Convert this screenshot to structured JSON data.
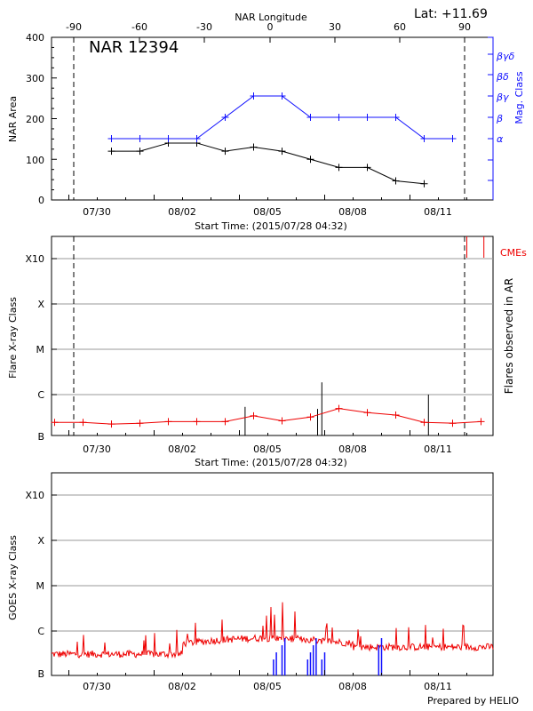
{
  "header": {
    "latitude_label": "Lat: +11.69",
    "region_title": "NAR 12394",
    "footer": "Prepared by HELIO"
  },
  "colors": {
    "area_line": "#000000",
    "magclass_line": "#1010ff",
    "flare_line": "#ee0000",
    "goes_line": "#ee0000",
    "goes_blue": "#1010ff",
    "cme": "#ee0000",
    "grid": "#999999"
  },
  "chart_data": [
    {
      "type": "line",
      "panel": "nar-area-magclass",
      "xlabel": "Start Time: (2015/07/28 04:32)",
      "x_tick_labels": [
        "07/30",
        "08/02",
        "08/05",
        "08/08",
        "08/11"
      ],
      "top_axis_label": "NAR Longitude",
      "top_tick_labels": [
        "-90",
        "-60",
        "-30",
        "0",
        "30",
        "60",
        "90"
      ],
      "ylabel": "NAR Area",
      "ylim": [
        0,
        400
      ],
      "y_tick_labels": [
        "0",
        "100",
        "200",
        "300",
        "400"
      ],
      "right_axis_label": "Mag. Class",
      "right_tick_labels": [
        "α",
        "β",
        "βγ",
        "βδ",
        "βγδ"
      ],
      "series": [
        {
          "series_id": "area",
          "days": [
            1.5,
            2.5,
            3.5,
            4.5,
            5.5,
            6.5,
            7.5,
            8.5,
            9.5,
            10.5,
            11.5,
            12.5
          ],
          "values": [
            120,
            120,
            140,
            140,
            120,
            130,
            120,
            100,
            80,
            80,
            47,
            40
          ]
        },
        {
          "series_id": "mag_class",
          "days": [
            1.5,
            2.5,
            3.5,
            4.5,
            5.5,
            6.5,
            7.5,
            8.5,
            9.5,
            10.5,
            11.5,
            12.5,
            13.5
          ],
          "class_index": [
            0,
            0,
            0,
            0,
            1,
            2,
            2,
            1,
            1,
            1,
            1,
            0,
            0
          ]
        }
      ],
      "markers": [
        "-90",
        "90"
      ]
    },
    {
      "type": "line",
      "panel": "flare-class",
      "xlabel": "Start Time: (2015/07/28 04:32)",
      "x_tick_labels": [
        "07/30",
        "08/02",
        "08/05",
        "08/08",
        "08/11"
      ],
      "ylabel": "Flare X-ray Class",
      "y_tick_labels": [
        "B",
        "C",
        "M",
        "X",
        "X10"
      ],
      "right_axis_label": "Flares observed in AR",
      "cme_label": "CMEs",
      "series": [
        {
          "series_id": "flare",
          "days": [
            -0.5,
            0.5,
            1.5,
            2.5,
            3.5,
            4.5,
            5.5,
            6.5,
            7.5,
            8.5,
            9.5,
            10.5,
            11.5,
            12.5,
            13.5,
            14.5
          ],
          "level": [
            0.32,
            0.32,
            0.28,
            0.3,
            0.34,
            0.34,
            0.34,
            0.48,
            0.36,
            0.45,
            0.66,
            0.56,
            0.5,
            0.32,
            0.3,
            0.34
          ]
        }
      ],
      "flare_bars": [
        {
          "day": 6.2,
          "level": 0.7
        },
        {
          "day": 8.75,
          "level": 0.65
        },
        {
          "day": 8.9,
          "level": 1.3
        },
        {
          "day": 12.65,
          "level": 1.0
        }
      ],
      "cme_days": [
        14.0,
        14.6,
        15.3
      ]
    },
    {
      "type": "line",
      "panel": "goes",
      "x_tick_labels": [
        "07/30",
        "08/02",
        "08/05",
        "08/08",
        "08/11"
      ],
      "ylabel": "GOES X-ray Class",
      "y_tick_labels": [
        "B",
        "C",
        "M",
        "X",
        "X10"
      ]
    }
  ]
}
